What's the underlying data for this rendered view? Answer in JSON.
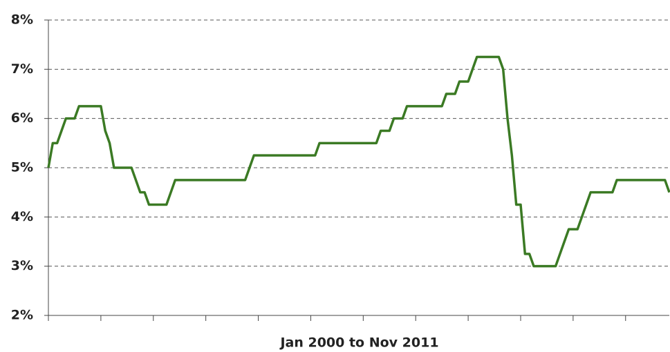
{
  "chart_data": {
    "type": "line",
    "x_label": "Jan 2000 to Nov 2011",
    "series": [
      {
        "color": "#3b7a24",
        "values": [
          5.0,
          5.5,
          5.5,
          5.75,
          6.0,
          6.0,
          6.0,
          6.25,
          6.25,
          6.25,
          6.25,
          6.25,
          6.25,
          5.75,
          5.5,
          5.0,
          5.0,
          5.0,
          5.0,
          5.0,
          4.75,
          4.5,
          4.5,
          4.25,
          4.25,
          4.25,
          4.25,
          4.25,
          4.5,
          4.75,
          4.75,
          4.75,
          4.75,
          4.75,
          4.75,
          4.75,
          4.75,
          4.75,
          4.75,
          4.75,
          4.75,
          4.75,
          4.75,
          4.75,
          4.75,
          4.75,
          5.0,
          5.25,
          5.25,
          5.25,
          5.25,
          5.25,
          5.25,
          5.25,
          5.25,
          5.25,
          5.25,
          5.25,
          5.25,
          5.25,
          5.25,
          5.25,
          5.5,
          5.5,
          5.5,
          5.5,
          5.5,
          5.5,
          5.5,
          5.5,
          5.5,
          5.5,
          5.5,
          5.5,
          5.5,
          5.5,
          5.75,
          5.75,
          5.75,
          6.0,
          6.0,
          6.0,
          6.25,
          6.25,
          6.25,
          6.25,
          6.25,
          6.25,
          6.25,
          6.25,
          6.25,
          6.5,
          6.5,
          6.5,
          6.75,
          6.75,
          6.75,
          7.0,
          7.25,
          7.25,
          7.25,
          7.25,
          7.25,
          7.25,
          7.0,
          6.0,
          5.25,
          4.25,
          4.25,
          3.25,
          3.25,
          3.0,
          3.0,
          3.0,
          3.0,
          3.0,
          3.0,
          3.25,
          3.5,
          3.75,
          3.75,
          3.75,
          4.0,
          4.25,
          4.5,
          4.5,
          4.5,
          4.5,
          4.5,
          4.5,
          4.75,
          4.75,
          4.75,
          4.75,
          4.75,
          4.75,
          4.75,
          4.75,
          4.75,
          4.75,
          4.75,
          4.75,
          4.5
        ]
      }
    ],
    "ylim": [
      2,
      8
    ],
    "yticks": [
      {
        "value": 2,
        "label": "2%"
      },
      {
        "value": 3,
        "label": "3%"
      },
      {
        "value": 4,
        "label": "4%"
      },
      {
        "value": 5,
        "label": "5%"
      },
      {
        "value": 6,
        "label": "6%"
      },
      {
        "value": 7,
        "label": "7%"
      },
      {
        "value": 8,
        "label": "8%"
      }
    ],
    "grid": true
  }
}
